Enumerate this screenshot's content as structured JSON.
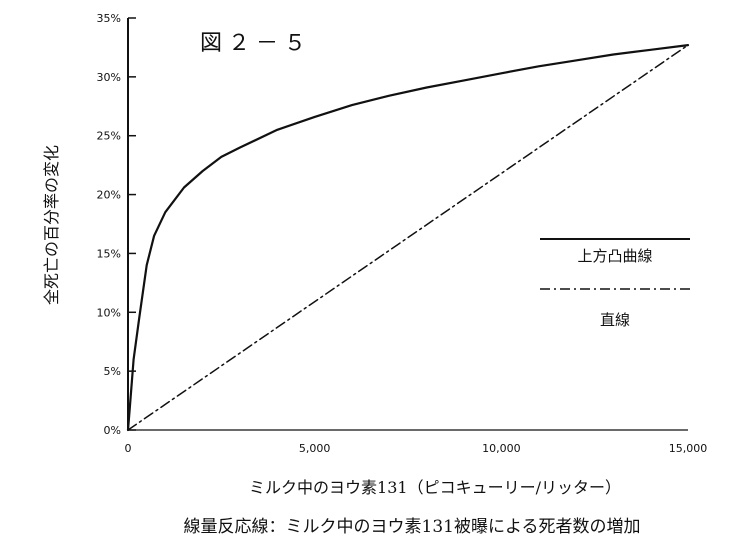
{
  "chart_data": {
    "type": "line",
    "title": "図２－５",
    "xlabel": "ミルク中のヨウ素131（ピコキューリー/リッター）",
    "ylabel": "全死亡の百分率の変化",
    "caption": "線量反応線：ミルク中のヨウ素131被曝による死者数の増加",
    "xlim": [
      0,
      15000
    ],
    "ylim": [
      0,
      35
    ],
    "x_ticks": [
      0,
      5000,
      10000,
      15000
    ],
    "x_tick_labels": [
      "0",
      "5,000",
      "10,000",
      "15,000"
    ],
    "y_ticks": [
      0,
      5,
      10,
      15,
      20,
      25,
      30,
      35
    ],
    "y_tick_labels": [
      "0%",
      "5%",
      "10%",
      "15%",
      "20%",
      "25%",
      "30%",
      "35%"
    ],
    "grid": false,
    "legend_position": "center-right",
    "series": [
      {
        "name": "上方凸曲線",
        "style": "solid",
        "x": [
          0,
          50,
          150,
          300,
          500,
          700,
          1000,
          1500,
          2000,
          2500,
          3000,
          4000,
          5000,
          6000,
          7000,
          8000,
          9000,
          10000,
          11000,
          12000,
          13000,
          14000,
          15000
        ],
        "y": [
          0,
          2.0,
          6.0,
          9.5,
          14.0,
          16.5,
          18.5,
          20.6,
          22.0,
          23.2,
          24.0,
          25.5,
          26.6,
          27.6,
          28.4,
          29.1,
          29.7,
          30.3,
          30.9,
          31.4,
          31.9,
          32.3,
          32.7
        ]
      },
      {
        "name": "直線",
        "style": "dash-dot",
        "x": [
          0,
          15000
        ],
        "y": [
          0,
          32.7
        ]
      }
    ]
  }
}
